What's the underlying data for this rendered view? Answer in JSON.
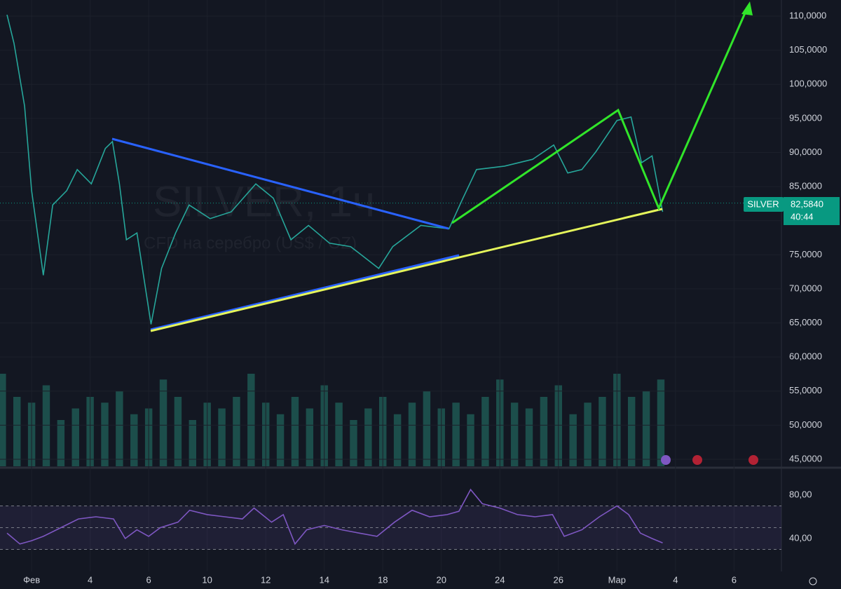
{
  "chart_data": [
    {
      "type": "line",
      "title": "SILVER, 1ч",
      "subtitle": "CFD на серебро (US$ / OZ)",
      "symbol": "SILVER",
      "countdown": "40:44",
      "last_price": {
        "value": 82.584,
        "label": "82,5840"
      },
      "x": [
        -0.42,
        -0.3,
        -0.12,
        0,
        0.2,
        0.36,
        0.6,
        0.78,
        1.02,
        1.26,
        1.38,
        1.5,
        1.62,
        1.8,
        2.04,
        2.22,
        2.46,
        2.69,
        3.05,
        3.41,
        3.83,
        4.13,
        4.43,
        4.73,
        5.09,
        5.45,
        5.93,
        6.17,
        6.65,
        7.13,
        7.37,
        7.6,
        8.08,
        8.56,
        8.92,
        9.16,
        9.4,
        9.64,
        10,
        10.24,
        10.42,
        10.6,
        10.78
      ],
      "series": [
        {
          "color": "#26a69a",
          "values": [
            110.2,
            106,
            96.8,
            84.4,
            72,
            82.3,
            84.4,
            87.5,
            85.4,
            90.6,
            91.6,
            85.4,
            77.2,
            78.2,
            64.8,
            73,
            78.2,
            82.3,
            80.3,
            81.3,
            85.4,
            83.3,
            77.2,
            79.3,
            76.7,
            76.2,
            73,
            76.2,
            79.3,
            78.8,
            83.3,
            87.5,
            88,
            89,
            91.1,
            87,
            87.5,
            90.1,
            94.7,
            95.2,
            88.5,
            89.5,
            81.3
          ]
        }
      ],
      "xlim": [
        -0.54,
        12.81
      ],
      "xticks": [
        {
          "value": 0,
          "label": "Фев"
        },
        {
          "value": 1,
          "label": "4"
        },
        {
          "value": 2,
          "label": "6"
        },
        {
          "value": 3,
          "label": "10"
        },
        {
          "value": 4,
          "label": "12"
        },
        {
          "value": 5,
          "label": "14"
        },
        {
          "value": 6,
          "label": "18"
        },
        {
          "value": 7,
          "label": "20"
        },
        {
          "value": 8,
          "label": "24"
        },
        {
          "value": 9,
          "label": "26"
        },
        {
          "value": 10,
          "label": "Мар"
        },
        {
          "value": 11,
          "label": "4"
        },
        {
          "value": 12,
          "label": "6"
        }
      ],
      "ylim": [
        43.97,
        112.37
      ],
      "yticks": [
        {
          "value": 45,
          "label": "45,0000"
        },
        {
          "value": 50,
          "label": "50,0000"
        },
        {
          "value": 55,
          "label": "55,0000"
        },
        {
          "value": 60,
          "label": "60,0000"
        },
        {
          "value": 65,
          "label": "65,0000"
        },
        {
          "value": 70,
          "label": "70,0000"
        },
        {
          "value": 75,
          "label": "75,0000"
        },
        {
          "value": 80,
          "label": "80,0000"
        },
        {
          "value": 85,
          "label": "85,0000"
        },
        {
          "value": 90,
          "label": "90,0000"
        },
        {
          "value": 95,
          "label": "95,0000"
        },
        {
          "value": 100,
          "label": "100,0000"
        },
        {
          "value": 105,
          "label": "105,0000"
        },
        {
          "value": 110,
          "label": "110,0000"
        }
      ],
      "grid": true
    },
    {
      "type": "bar",
      "color": "#1f5c56",
      "x": [
        -0.5,
        -0.25,
        0,
        0.25,
        0.5,
        0.75,
        1,
        1.25,
        1.5,
        1.75,
        2,
        2.25,
        2.5,
        2.75,
        3,
        3.25,
        3.5,
        3.75,
        4,
        4.25,
        4.5,
        4.75,
        5,
        5.25,
        5.5,
        5.75,
        6,
        6.25,
        6.5,
        6.75,
        7,
        7.25,
        7.5,
        7.75,
        8,
        8.25,
        8.5,
        8.75,
        9,
        9.25,
        9.5,
        9.75,
        10,
        10.25,
        10.5,
        10.75
      ],
      "values": [
        80,
        60,
        55,
        70,
        40,
        50,
        60,
        55,
        65,
        45,
        50,
        75,
        60,
        40,
        55,
        50,
        60,
        80,
        55,
        45,
        60,
        50,
        70,
        55,
        40,
        50,
        60,
        45,
        55,
        65,
        50,
        55,
        45,
        60,
        75,
        55,
        50,
        60,
        70,
        45,
        55,
        60,
        80,
        60,
        65,
        75
      ],
      "xlim": [
        -0.54,
        12.81
      ],
      "ylim": [
        0,
        100
      ]
    },
    {
      "type": "line",
      "bands": [
        30,
        50,
        70
      ],
      "x": [
        -0.42,
        -0.2,
        0,
        0.2,
        0.5,
        0.8,
        1.1,
        1.4,
        1.6,
        1.8,
        2,
        2.2,
        2.5,
        2.7,
        3,
        3.3,
        3.6,
        3.8,
        4.1,
        4.3,
        4.5,
        4.7,
        5,
        5.3,
        5.6,
        5.9,
        6.2,
        6.5,
        6.8,
        7.1,
        7.3,
        7.5,
        7.7,
        8,
        8.3,
        8.6,
        8.9,
        9.1,
        9.4,
        9.7,
        10,
        10.2,
        10.4,
        10.6,
        10.78
      ],
      "series": [
        {
          "color": "#7e57c2",
          "values": [
            45,
            35,
            38,
            42,
            50,
            58,
            60,
            58,
            40,
            48,
            42,
            50,
            55,
            66,
            62,
            60,
            58,
            68,
            55,
            62,
            35,
            48,
            52,
            48,
            45,
            42,
            55,
            66,
            60,
            62,
            65,
            85,
            72,
            68,
            62,
            60,
            62,
            42,
            48,
            60,
            70,
            62,
            45,
            40,
            36
          ]
        }
      ],
      "xlim": [
        -0.54,
        12.81
      ],
      "ylim": [
        9.7,
        103.2
      ],
      "yticks": [
        {
          "value": 40,
          "label": "40,00"
        },
        {
          "value": 80,
          "label": "80,00"
        }
      ]
    }
  ]
}
